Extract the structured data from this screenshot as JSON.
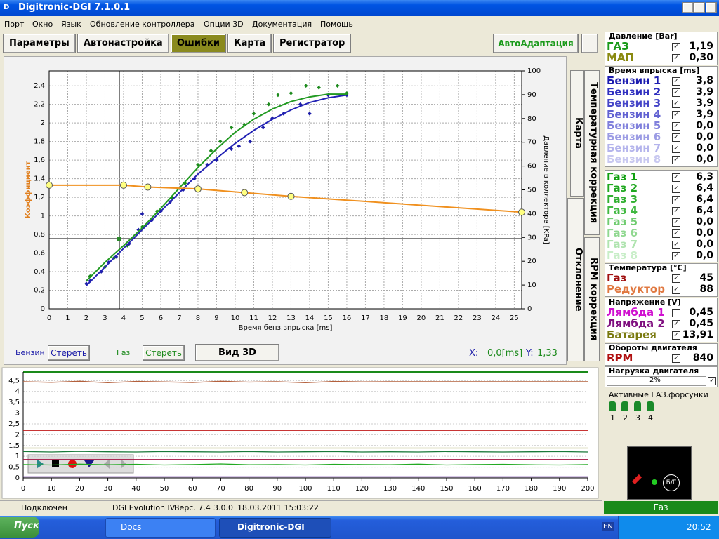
{
  "window": {
    "title": "Digitronic-DGI  7.1.0.1"
  },
  "menu": [
    "Порт",
    "Окно",
    "Язык",
    "Обновление контроллера",
    "Опции 3D",
    "Документация",
    "Помощь"
  ],
  "tabs": [
    "Параметры",
    "Автонастройка",
    "Ошибки",
    "Карта",
    "Регистратор"
  ],
  "auto_button": "АвтоАдаптация",
  "side_tabs": [
    "Карта",
    "Температурная коррекция",
    "Отклонение",
    "RPM коррекция"
  ],
  "controls": {
    "clear_petrol": "Стереть",
    "clear_gas": "Стереть",
    "view3d": "Вид 3D",
    "x_label": "X:",
    "x_value": "0,0[ms]",
    "y_label": "Y:",
    "y_value": "1,33"
  },
  "chart_data": [
    {
      "type": "scatter",
      "x_label": "Время бенз.впрыска [ms]",
      "y_label": "Коэффициент",
      "y2_label": "Давление в коллекторе [KPa]",
      "xlim": [
        0,
        25.4
      ],
      "ylim": [
        0,
        2.56
      ],
      "y2lim": [
        0,
        100
      ],
      "grid": true,
      "xticks": [
        0,
        1,
        2,
        3,
        4,
        5,
        6,
        7,
        8,
        9,
        10,
        11,
        12,
        13,
        14,
        15,
        16,
        17,
        18,
        19,
        20,
        21,
        22,
        23,
        24,
        25
      ],
      "yticks": [
        0,
        {
          "value": 0.2,
          "label": "0,2"
        },
        {
          "value": 0.4,
          "label": "0,4"
        },
        {
          "value": 0.6,
          "label": "0,6"
        },
        {
          "value": 0.8,
          "label": "0,8"
        },
        1,
        {
          "value": 1.2,
          "label": "1,2"
        },
        {
          "value": 1.4,
          "label": "1,4"
        },
        {
          "value": 1.6,
          "label": "1,6"
        },
        {
          "value": 1.8,
          "label": "1,8"
        },
        2,
        {
          "value": 2.2,
          "label": "2,2"
        },
        {
          "value": 2.4,
          "label": "2,4"
        }
      ],
      "y2ticks": [
        0,
        10,
        20,
        30,
        40,
        50,
        60,
        70,
        80,
        90,
        100
      ],
      "series": [
        {
          "name": "Бензин",
          "color": "#1c1ca8",
          "mode": "points",
          "x": [
            2,
            2.2,
            2.8,
            3.2,
            3.6,
            4.3,
            4.8,
            5,
            5.5,
            6,
            6.5,
            7.2,
            7.8,
            8.5,
            9,
            9.8,
            10.2,
            10.8,
            11.5,
            12,
            12.6,
            13.5,
            14,
            15,
            16
          ],
          "values": [
            0.27,
            0.3,
            0.4,
            0.5,
            0.56,
            0.7,
            0.85,
            1.02,
            0.95,
            1.05,
            1.15,
            1.28,
            1.4,
            1.55,
            1.6,
            1.72,
            1.75,
            1.8,
            1.95,
            2.05,
            2.1,
            2.2,
            2.1,
            2.3,
            2.3
          ]
        },
        {
          "name": "Газ",
          "color": "#1c8a1c",
          "mode": "points",
          "x": [
            2.2,
            3,
            3.5,
            4.2,
            5,
            5.8,
            6.6,
            7.3,
            8,
            8.7,
            9.2,
            9.8,
            10.5,
            11,
            11.8,
            12.3,
            13,
            13.8,
            14.5,
            15.5,
            16
          ],
          "values": [
            0.35,
            0.45,
            0.55,
            0.68,
            0.88,
            1.05,
            1.2,
            1.35,
            1.55,
            1.7,
            1.8,
            1.95,
            1.98,
            2.1,
            2.2,
            2.3,
            2.32,
            2.4,
            2.38,
            2.4,
            2.32
          ]
        },
        {
          "color": "#2222b4",
          "mode": "line",
          "x": [
            2,
            3,
            4,
            5,
            6,
            7,
            8,
            9,
            10,
            11,
            12,
            13,
            14,
            15,
            16
          ],
          "values": [
            0.25,
            0.45,
            0.65,
            0.85,
            1.05,
            1.25,
            1.45,
            1.62,
            1.78,
            1.92,
            2.04,
            2.14,
            2.22,
            2.27,
            2.3
          ]
        },
        {
          "color": "#229a22",
          "mode": "line",
          "x": [
            2,
            3,
            4,
            5,
            6,
            7,
            8,
            9,
            10,
            11,
            12,
            13,
            14,
            15,
            16
          ],
          "values": [
            0.3,
            0.5,
            0.68,
            0.87,
            1.08,
            1.3,
            1.52,
            1.72,
            1.9,
            2.04,
            2.15,
            2.23,
            2.28,
            2.31,
            2.31
          ]
        },
        {
          "color": "#f0901e",
          "mode": "line+markers",
          "x": [
            0,
            4,
            5.3,
            8,
            10.5,
            13,
            25.4
          ],
          "values": [
            1.33,
            1.33,
            1.31,
            1.29,
            1.25,
            1.21,
            1.04
          ]
        }
      ]
    },
    {
      "type": "line",
      "xlim": [
        0,
        200
      ],
      "ylim": [
        0,
        4.9
      ],
      "grid": true,
      "xticks": [
        0,
        10,
        20,
        30,
        40,
        50,
        60,
        70,
        80,
        90,
        100,
        110,
        120,
        130,
        140,
        150,
        160,
        170,
        180,
        190,
        200
      ],
      "yticks": [
        0,
        {
          "value": 0.5,
          "label": "0,5"
        },
        1,
        {
          "value": 1.5,
          "label": "1,5"
        },
        2,
        {
          "value": 2.5,
          "label": "2,5"
        },
        3,
        {
          "value": 3.5,
          "label": "3,5"
        },
        4,
        {
          "value": 4.5,
          "label": "4,5"
        }
      ],
      "x": [
        0,
        10,
        20,
        30,
        40,
        50,
        60,
        70,
        80,
        90,
        100,
        110,
        120,
        130,
        140,
        150,
        160,
        170,
        180,
        190,
        200
      ],
      "series": [
        {
          "color": "#b4603c",
          "values": [
            4.45,
            4.42,
            4.47,
            4.4,
            4.46,
            4.44,
            4.41,
            4.47,
            4.43,
            4.45,
            4.4,
            4.46,
            4.44,
            4.45,
            4.45,
            4.45,
            4.45,
            4.45,
            4.45,
            4.45,
            4.45
          ]
        },
        {
          "color": "#c01818",
          "values": [
            2.2,
            2.2,
            2.2,
            2.2,
            2.2,
            2.2,
            2.2,
            2.2,
            2.2,
            2.2,
            2.2,
            2.2,
            2.2,
            2.2,
            2.2,
            2.2,
            2.2,
            2.2,
            2.2,
            2.2,
            2.2
          ]
        },
        {
          "color": "#8a8a20",
          "values": [
            1.38,
            1.38,
            1.38,
            1.38,
            1.38,
            1.38,
            1.38,
            1.38,
            1.38,
            1.38,
            1.38,
            1.38,
            1.38,
            1.38,
            1.38,
            1.38,
            1.38,
            1.38,
            1.38,
            1.38,
            1.38
          ]
        },
        {
          "color": "#1a7a3a",
          "values": [
            1.22,
            1.2,
            1.23,
            1.21,
            1.2,
            1.22,
            1.21,
            1.2,
            1.22,
            1.2,
            1.21,
            1.22,
            1.2,
            1.21,
            1.2,
            1.22,
            1.21,
            1.2,
            1.21,
            1.22,
            1.2
          ]
        },
        {
          "color": "#a01040",
          "values": [
            0.85,
            0.85,
            0.85,
            0.85,
            0.85,
            0.85,
            0.85,
            0.85,
            0.85,
            0.85,
            0.85,
            0.85,
            0.85,
            0.85,
            0.85,
            0.85,
            0.85,
            0.85,
            0.85,
            0.85,
            0.85
          ]
        },
        {
          "color": "#22aa22",
          "values": [
            0.62,
            0.6,
            0.64,
            0.61,
            0.63,
            0.6,
            0.62,
            0.65,
            0.61,
            0.62,
            0.6,
            0.63,
            0.62,
            0.61,
            0.64,
            0.6,
            0.62,
            0.63,
            0.61,
            0.6,
            0.62
          ]
        },
        {
          "color": "#6020a0",
          "values": [
            0.05,
            0.05,
            0.05,
            0.05,
            0.05,
            0.05,
            0.05,
            0.05,
            0.05,
            0.05,
            0.05,
            0.05,
            0.05,
            0.05,
            0.05,
            0.05,
            0.05,
            0.05,
            0.05,
            0.05,
            0.05
          ]
        }
      ]
    }
  ],
  "panel": {
    "sections": [
      {
        "title": "Давление [Bar]",
        "rows": [
          {
            "label": "ГАЗ",
            "value": "1,19",
            "color": "#1a9a1a"
          },
          {
            "label": "МАП",
            "value": "0,30",
            "color": "#8a8a10"
          }
        ]
      },
      {
        "title": "Время впрыска [ms]",
        "rows": [
          {
            "label": "Бензин 1",
            "value": "3,8",
            "color": "#1c1cb0"
          },
          {
            "label": "Бензин 2",
            "value": "3,9",
            "color": "#3030c0"
          },
          {
            "label": "Бензин 3",
            "value": "3,9",
            "color": "#4646c8"
          },
          {
            "label": "Бензин 4",
            "value": "3,9",
            "color": "#6262d2"
          },
          {
            "label": "Бензин 5",
            "value": "0,0",
            "color": "#8080dc"
          },
          {
            "label": "Бензин 6",
            "value": "0,0",
            "color": "#9c9ce4"
          },
          {
            "label": "Бензин 7",
            "value": "0,0",
            "color": "#b4b4ec"
          },
          {
            "label": "Бензин 8",
            "value": "0,0",
            "color": "#c8c8f0"
          }
        ]
      },
      {
        "rows": [
          {
            "label": "Газ 1",
            "value": "6,3",
            "color": "#10a010"
          },
          {
            "label": "Газ 2",
            "value": "6,4",
            "color": "#20a820"
          },
          {
            "label": "Газ 3",
            "value": "6,4",
            "color": "#30b030"
          },
          {
            "label": "Газ 4",
            "value": "6,4",
            "color": "#40b840"
          },
          {
            "label": "Газ 5",
            "value": "0,0",
            "color": "#70cc70"
          },
          {
            "label": "Газ 6",
            "value": "0,0",
            "color": "#90d890"
          },
          {
            "label": "Газ 7",
            "value": "0,0",
            "color": "#b0e4b0"
          },
          {
            "label": "Газ 8",
            "value": "0,0",
            "color": "#c8eec8"
          }
        ]
      },
      {
        "title": "Температура [°C]",
        "rows": [
          {
            "label": "Газ",
            "value": "45",
            "color": "#a01010"
          },
          {
            "label": "Редуктор",
            "value": "88",
            "color": "#e07840"
          }
        ]
      },
      {
        "title": "Напряжение [V]",
        "rows": [
          {
            "label": "Лямбда 1",
            "value": "0,45",
            "color": "#d010d0"
          },
          {
            "label": "Лямбда 2",
            "value": "0,45",
            "color": "#801080"
          },
          {
            "label": "Батарея",
            "value": "13,91",
            "color": "#7a7a10"
          }
        ]
      },
      {
        "title": "Обороты двигателя",
        "rows": [
          {
            "label": "RPM",
            "value": "840",
            "color": "#b01010"
          }
        ]
      }
    ],
    "load": {
      "title": "Нагрузка двигателя",
      "value": "2%"
    },
    "injectors": {
      "title": "Активные ГАЗ.форсунки",
      "labels": [
        "1",
        "2",
        "3",
        "4"
      ]
    },
    "gauge": "Б/Г"
  },
  "status": [
    "Подключен",
    "DGI Evolution IV",
    "Верс. 7.4",
    "3.0.0",
    "18.03.2011 15:03:22"
  ],
  "status_mode": "Газ",
  "taskbar": {
    "start": "Пуск",
    "tasks": [
      "Docs",
      "Digitronic-DGI"
    ],
    "lang": "EN",
    "clock": "20:52"
  }
}
